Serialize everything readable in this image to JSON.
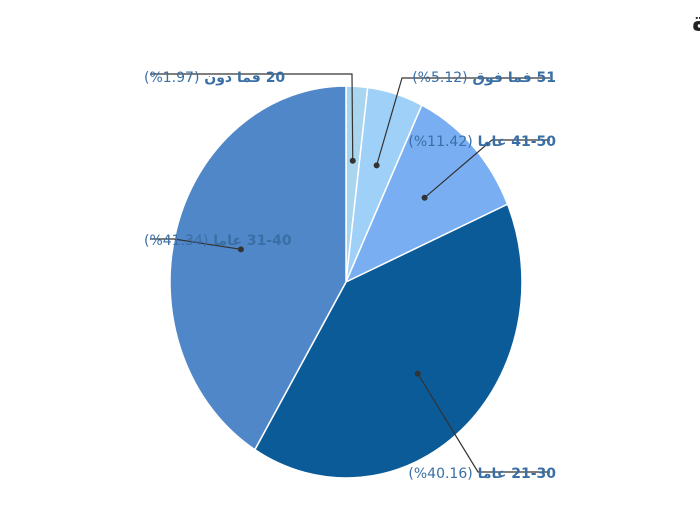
{
  "chart_data": {
    "type": "pie",
    "title": "نسبة أعمار الصحفيين الذين استشهدوا في غزة",
    "slices": [
      {
        "label": "20 فما دون",
        "pct_text": "(1.97%)",
        "value": 1.97,
        "color": "#a9d5ee"
      },
      {
        "label": "51 فما فوق",
        "pct_text": "(5.12%)",
        "value": 5.12,
        "color": "#9fd0f7"
      },
      {
        "label": "41-50 عاما",
        "pct_text": "(11.42%)",
        "value": 11.42,
        "color": "#79aef2"
      },
      {
        "label": "21-30 عاما",
        "pct_text": "(40.16%)",
        "value": 40.16,
        "color": "#0b5b98"
      },
      {
        "label": "31-40 عاما",
        "pct_text": "(41.34%)",
        "value": 41.34,
        "color": "#4f87c9"
      }
    ],
    "label_color": "#3a6fa5",
    "leader_color": "#333333"
  }
}
